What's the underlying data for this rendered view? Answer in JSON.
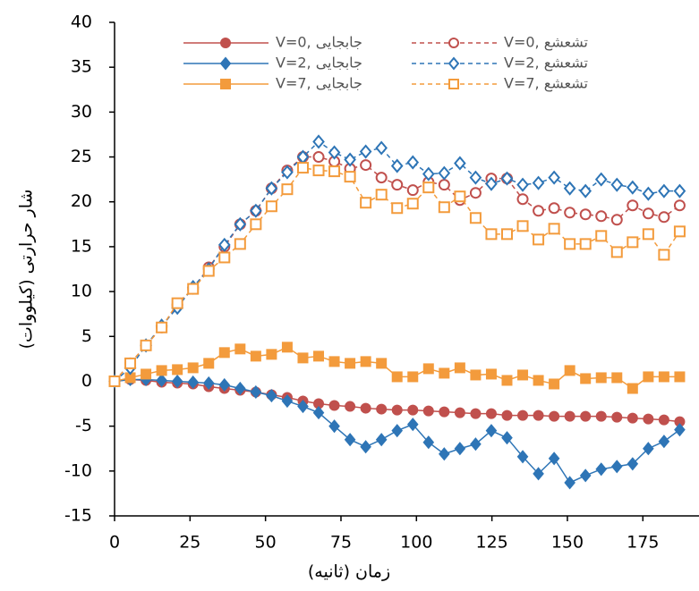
{
  "chart_data": {
    "type": "line",
    "x_label": "زمان (ثانیه)",
    "y_label": "شار حرارتی (کیلووات)",
    "xlim": [
      0,
      193
    ],
    "xticks": [
      0,
      25,
      50,
      75,
      100,
      125,
      150,
      175
    ],
    "ylim": [
      -15,
      40
    ],
    "yticks": [
      -15,
      -10,
      -5,
      0,
      5,
      10,
      15,
      20,
      25,
      30,
      35,
      40
    ],
    "x": [
      0,
      5.2,
      10.4,
      15.6,
      20.8,
      26,
      31.2,
      36.4,
      41.6,
      46.8,
      52,
      57.2,
      62.4,
      67.6,
      72.8,
      78,
      83.2,
      88.4,
      93.6,
      98.8,
      104,
      109.2,
      114.4,
      119.6,
      124.8,
      130,
      135.2,
      140.4,
      145.6,
      150.8,
      156,
      161.2,
      166.4,
      171.6,
      176.8,
      182,
      187.2
    ],
    "series": [
      {
        "name": "V=0, جابجایی",
        "color": "#c0504d",
        "marker": "circle",
        "filled": true,
        "dashed": false,
        "values": [
          0,
          0.2,
          0.1,
          -0.1,
          -0.2,
          -0.3,
          -0.6,
          -0.8,
          -1,
          -1.2,
          -1.5,
          -1.8,
          -2.2,
          -2.5,
          -2.7,
          -2.8,
          -3,
          -3.1,
          -3.2,
          -3.2,
          -3.3,
          -3.4,
          -3.5,
          -3.6,
          -3.6,
          -3.8,
          -3.8,
          -3.8,
          -3.9,
          -3.9,
          -3.9,
          -3.9,
          -4,
          -4.1,
          -4.2,
          -4.3,
          -4.5
        ]
      },
      {
        "name": "V=2, جابجایی",
        "color": "#2e75b6",
        "marker": "diamond",
        "filled": true,
        "dashed": false,
        "values": [
          0,
          0.2,
          0.2,
          0.1,
          0,
          -0.1,
          -0.2,
          -0.4,
          -0.8,
          -1.2,
          -1.6,
          -2.2,
          -2.8,
          -3.5,
          -5,
          -6.5,
          -7.3,
          -6.5,
          -5.5,
          -4.8,
          -6.8,
          -8.1,
          -7.5,
          -7,
          -5.5,
          -6.3,
          -8.4,
          -10.3,
          -8.6,
          -11.3,
          -10.5,
          -9.8,
          -9.5,
          -9.2,
          -7.5,
          -6.7,
          -5.4
        ]
      },
      {
        "name": "V=7, جابجایی",
        "color": "#f39b3c",
        "marker": "square",
        "filled": true,
        "dashed": false,
        "values": [
          0,
          0.4,
          0.8,
          1.2,
          1.3,
          1.5,
          2,
          3.2,
          3.6,
          2.8,
          3,
          3.8,
          2.6,
          2.8,
          2.2,
          2,
          2.2,
          2,
          0.5,
          0.5,
          1.4,
          0.9,
          1.5,
          0.7,
          0.8,
          0.1,
          0.7,
          0.1,
          -0.3,
          1.2,
          0.3,
          0.4,
          0.4,
          -0.8,
          0.5,
          0.5,
          0.5
        ]
      },
      {
        "name": "V=0, تشعشع",
        "color": "#c0504d",
        "marker": "circle",
        "filled": false,
        "dashed": true,
        "values": [
          0,
          2,
          4,
          6,
          8.5,
          10.3,
          12.7,
          15,
          17.5,
          19,
          21.5,
          23.5,
          25,
          25,
          24.5,
          23.7,
          24.1,
          22.7,
          21.9,
          21.3,
          22.2,
          21.9,
          20.2,
          21,
          22.6,
          22.6,
          20.3,
          19,
          19.3,
          18.8,
          18.6,
          18.4,
          18,
          19.6,
          18.7,
          18.3,
          19.6
        ]
      },
      {
        "name": "V=2, تشعشع",
        "color": "#2e75b6",
        "marker": "diamond",
        "filled": false,
        "dashed": true,
        "values": [
          0,
          1.5,
          4,
          6.2,
          8.2,
          10.5,
          12.5,
          15.2,
          17.5,
          19,
          21.5,
          23.3,
          25,
          26.7,
          25.5,
          24.7,
          25.6,
          26,
          24,
          24.4,
          23.1,
          23.2,
          24.3,
          22.7,
          22,
          22.6,
          21.9,
          22.1,
          22.7,
          21.5,
          21.2,
          22.5,
          21.9,
          21.6,
          20.9,
          21.2,
          21.2
        ]
      },
      {
        "name": "V=7, تشعشع",
        "color": "#f39b3c",
        "marker": "square",
        "filled": false,
        "dashed": true,
        "values": [
          0,
          2,
          4,
          6,
          8.7,
          10.3,
          12.3,
          13.8,
          15.3,
          17.5,
          19.5,
          21.4,
          23.8,
          23.5,
          23.4,
          22.8,
          19.9,
          20.8,
          19.3,
          19.8,
          21.6,
          19.4,
          20.6,
          18.2,
          16.4,
          16.4,
          17.3,
          15.8,
          17,
          15.3,
          15.3,
          16.2,
          14.4,
          15.5,
          16.4,
          14.1,
          16.7
        ]
      }
    ]
  }
}
